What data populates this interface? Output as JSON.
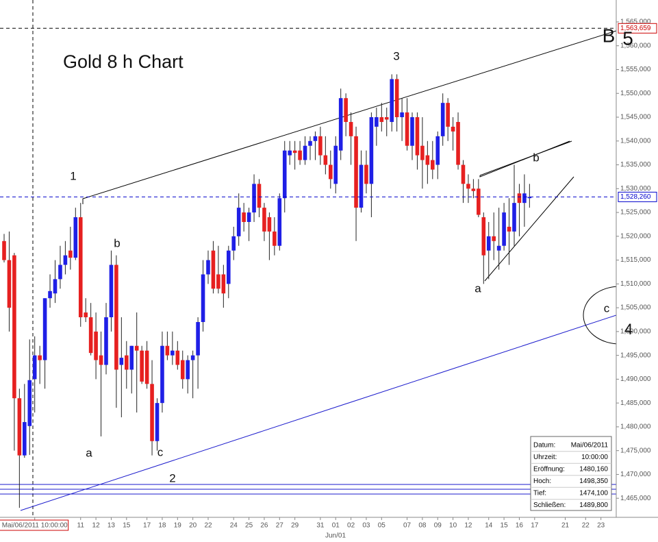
{
  "chart_data": {
    "type": "candlestick",
    "title": "Gold 8 h Chart",
    "annotations": [
      "1",
      "b",
      "a",
      "c",
      "2",
      "3",
      "b",
      "a",
      "c",
      "4",
      "B",
      "5",
      "Jun/01"
    ],
    "categories": [
      null,
      null,
      null,
      null,
      null,
      null,
      "Mai/06/2011 10:00:00",
      null,
      null,
      null,
      null,
      null,
      null,
      null,
      null,
      "11",
      null,
      null,
      "12",
      null,
      null,
      "13",
      null,
      null,
      "15",
      null,
      null,
      null,
      "17",
      null,
      null,
      "18",
      null,
      null,
      "19",
      null,
      null,
      "20",
      null,
      null,
      "22",
      null,
      null,
      null,
      null,
      "24",
      null,
      null,
      "25",
      null,
      null,
      "26",
      null,
      null,
      "27",
      null,
      null,
      "29",
      null,
      null,
      null,
      null,
      "31",
      null,
      null,
      "01",
      null,
      null,
      "02",
      null,
      null,
      "03",
      null,
      null,
      "05",
      null,
      null,
      null,
      null,
      "07",
      null,
      null,
      "08",
      null,
      null,
      "09",
      null,
      null,
      "10",
      null,
      null,
      "12",
      null,
      null,
      null,
      "14",
      null,
      null,
      "15",
      null,
      null,
      "16",
      null,
      null,
      "17",
      null,
      null,
      null,
      null,
      null,
      "21",
      null,
      null,
      null,
      "22",
      null,
      null,
      "23",
      null,
      null
    ],
    "open": [
      1519,
      1515,
      1516,
      1486,
      1474,
      1480.16,
      1490,
      1495,
      1494,
      1507,
      1508,
      1511,
      1514,
      1517,
      1515.5,
      1524,
      1504,
      1503,
      1500,
      1495,
      1493,
      1503,
      1514,
      1493,
      1495,
      1492,
      1497,
      1496,
      1496,
      1489,
      1477,
      1485,
      1497,
      1495,
      1496,
      1494,
      1490,
      1494,
      1495,
      1502,
      1512,
      1517,
      1512,
      1512,
      1510,
      1517,
      1520,
      1525,
      1523,
      1525,
      1531,
      1526,
      1524,
      1521,
      1518,
      1528,
      1537,
      1538,
      1538,
      1536,
      1539,
      1540,
      1541,
      1537,
      1535,
      1531,
      1538,
      1549,
      1544,
      1541,
      1526,
      1535,
      1531,
      1543,
      1545,
      1545,
      1544,
      1553,
      1545,
      1546,
      1539,
      1545,
      1539,
      1537,
      1536,
      1535,
      1541,
      1548,
      1543,
      1544,
      1535,
      1531,
      1530,
      1530,
      1524,
      1517,
      1520,
      1517,
      1518,
      1522,
      1521,
      1529,
      1527,
      1528,
      null,
      null,
      null,
      null,
      null,
      null,
      null,
      null,
      null,
      null,
      null,
      null,
      null,
      null,
      null,
      null
    ],
    "high": [
      1520.5,
      1521,
      1516.5,
      1488,
      1489,
      1498.35,
      1499,
      1497,
      1507,
      1512,
      1515,
      1518,
      1519,
      1522,
      1526,
      1527,
      1507,
      1506,
      1504,
      1500,
      1506,
      1517,
      1516,
      1503,
      1498,
      1497,
      1504,
      1497,
      1498,
      1494,
      1486,
      1500,
      1500,
      1500,
      1498,
      1496,
      1495,
      1496,
      1503,
      1515,
      1517,
      1519,
      1518,
      1514,
      1518,
      1522,
      1529,
      1527,
      1526,
      1533,
      1532,
      1527,
      1525,
      1524,
      1529,
      1540,
      1540,
      1540,
      1540,
      1541,
      1541,
      1542,
      1543,
      1541,
      1538,
      1541,
      1551,
      1550,
      1546,
      1543,
      1538,
      1538,
      1546,
      1547,
      1548,
      1547,
      1554,
      1554,
      1549,
      1549,
      1546,
      1546,
      1545,
      1540,
      1540,
      1542,
      1550,
      1549,
      1545,
      1546,
      1536,
      1533,
      1532,
      1532,
      1525,
      1523,
      1525,
      1526,
      1527,
      1528,
      1535,
      1531,
      1533,
      1531,
      null,
      null,
      null,
      null,
      null,
      null,
      null,
      null,
      null,
      null,
      null,
      null,
      null,
      null,
      null,
      null
    ],
    "low": [
      1514.5,
      1500,
      1475,
      1463,
      1473.5,
      1474.1,
      1483,
      1489,
      1488,
      1505,
      1506,
      1509,
      1512,
      1513,
      1515,
      1501,
      1502,
      1495,
      1490,
      1478,
      1491,
      1500,
      1484,
      1482,
      1488,
      1487,
      1483,
      1489,
      1488,
      1474,
      1475,
      1483,
      1494,
      1493,
      1492,
      1488,
      1487,
      1486,
      1488,
      1500,
      1510,
      1508,
      1508,
      1505,
      1507,
      1515,
      1518,
      1521,
      1519,
      1523,
      1524,
      1519,
      1515,
      1516,
      1517,
      1525,
      1535,
      1534,
      1535,
      1535,
      1536,
      1536,
      1535,
      1533,
      1530,
      1529,
      1536,
      1541,
      1535,
      1519,
      1525,
      1529,
      1524,
      1539,
      1542,
      1541,
      1542,
      1542,
      1540,
      1538,
      1536,
      1534,
      1530,
      1531,
      1532,
      1532,
      1539,
      1540,
      1538,
      1534,
      1527,
      1527,
      1528,
      1524,
      1510,
      1511,
      1515,
      1513,
      1517,
      1514,
      1518,
      1520,
      1522,
      1526,
      null,
      null,
      null,
      null,
      null,
      null,
      null,
      null,
      null,
      null,
      null,
      null,
      null,
      null,
      null,
      null
    ],
    "close": [
      1515,
      1505,
      1486,
      1474,
      1481,
      1489.8,
      1495,
      1494,
      1507,
      1508.5,
      1511,
      1514,
      1516,
      1515.5,
      1524,
      1503,
      1503,
      1495.5,
      1494,
      1493,
      1503,
      1514,
      1492,
      1494.5,
      1492,
      1497,
      1496,
      1489.5,
      1489,
      1477,
      1485,
      1497,
      1495,
      1496,
      1493,
      1490,
      1494,
      1495,
      1502,
      1512,
      1515,
      1509,
      1509,
      1508,
      1517,
      1520,
      1526,
      1523,
      1525,
      1531,
      1526,
      1521,
      1521,
      1518,
      1528,
      1538,
      1538,
      1537.5,
      1536,
      1539,
      1540,
      1541,
      1537,
      1535,
      1532,
      1539,
      1549,
      1544,
      1541,
      1526,
      1535,
      1531,
      1545,
      1545,
      1544,
      1544.5,
      1553,
      1545,
      1546,
      1539,
      1545,
      1537,
      1536,
      1535,
      1534,
      1541,
      1548,
      1543,
      1542,
      1535,
      1531,
      1530,
      1529.5,
      1524.5,
      1516,
      1520,
      1519,
      1518,
      1525,
      1521,
      1527,
      1527,
      1529,
      1528.26,
      null,
      null,
      null,
      null,
      null,
      null,
      null,
      null,
      null,
      null,
      null,
      null,
      null,
      null,
      null,
      null
    ],
    "up_color": "#1f1fe6",
    "down_color": "#e62020",
    "ylim": [
      1461,
      1569.6
    ],
    "yticks": [
      {
        "value": 1465,
        "label": "1,465,000"
      },
      {
        "value": 1470,
        "label": "1,470,000"
      },
      {
        "value": 1475,
        "label": "1,475,000"
      },
      {
        "value": 1480,
        "label": "1,480,000"
      },
      {
        "value": 1485,
        "label": "1,485,000"
      },
      {
        "value": 1490,
        "label": "1,490,000"
      },
      {
        "value": 1495,
        "label": "1,495,000"
      },
      {
        "value": 1500,
        "label": "1,500,000"
      },
      {
        "value": 1505,
        "label": "1,505,000"
      },
      {
        "value": 1510,
        "label": "1,510,000"
      },
      {
        "value": 1515,
        "label": "1,515,000"
      },
      {
        "value": 1520,
        "label": "1,520,000"
      },
      {
        "value": 1525,
        "label": "1,525,000"
      },
      {
        "value": 1530,
        "label": "1,530,000"
      },
      {
        "value": 1535,
        "label": "1,535,000"
      },
      {
        "value": 1540,
        "label": "1,540,000"
      },
      {
        "value": 1545,
        "label": "1,545,000"
      },
      {
        "value": 1550,
        "label": "1,550,000"
      },
      {
        "value": 1555,
        "label": "1,555,000"
      },
      {
        "value": 1560,
        "label": "1,560,000"
      },
      {
        "value": 1565,
        "label": "1,565,000"
      }
    ],
    "price_markers": [
      {
        "value": 1563.659,
        "label": "1,563,659",
        "color": "#cc0000",
        "line_color": "#000000"
      },
      {
        "value": 1528.26,
        "label": "1,528,260",
        "color": "#0000cc",
        "line_color": "#0000cc"
      }
    ],
    "info_box": {
      "rows": [
        [
          "Datum:",
          "Mai/06/2011"
        ],
        [
          "Uhrzeit:",
          "10:00:00"
        ],
        [
          "Eröffnung:",
          "1480,160"
        ],
        [
          "Hoch:",
          "1498,350"
        ],
        [
          "Tief:",
          "1474,100"
        ],
        [
          "Schließen:",
          "1489,800"
        ]
      ]
    }
  }
}
